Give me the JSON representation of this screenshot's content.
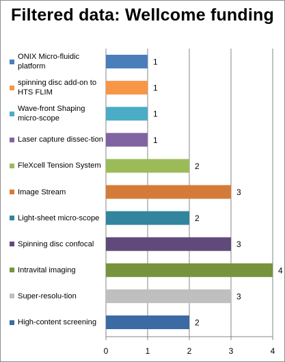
{
  "chart_data": {
    "type": "bar",
    "orientation": "horizontal",
    "title": "Filtered data: Wellcome funding",
    "xlabel": "",
    "ylabel": "",
    "xlim": [
      0,
      4
    ],
    "x_ticks": [
      "0",
      "1",
      "2",
      "3",
      "4"
    ],
    "grid": "vertical",
    "legend_position": "left",
    "series": [
      {
        "name": "ONIX Micro-fluidic platform",
        "value": 1,
        "color": "#4A7EBB"
      },
      {
        "name": "spinning disc add-on to HTS FLIM",
        "value": 1,
        "color": "#F79646"
      },
      {
        "name": "Wave-front Shaping micro-scope",
        "value": 1,
        "color": "#4BACC6"
      },
      {
        "name": "Laser capture dissec-tion",
        "value": 1,
        "color": "#8064A2"
      },
      {
        "name": "FleXcell Tension System",
        "value": 2,
        "color": "#9BBB59"
      },
      {
        "name": "Image Stream",
        "value": 3,
        "color": "#D47B3A"
      },
      {
        "name": "Light-sheet micro-scope",
        "value": 2,
        "color": "#31859C"
      },
      {
        "name": "Spinning disc confocal",
        "value": 3,
        "color": "#604A7B"
      },
      {
        "name": "Intravital imaging",
        "value": 4,
        "color": "#77933C"
      },
      {
        "name": "Super-resolu-tion",
        "value": 3,
        "color": "#BFBFBF"
      },
      {
        "name": "High-content screening",
        "value": 2,
        "color": "#3C6AA5"
      }
    ]
  }
}
